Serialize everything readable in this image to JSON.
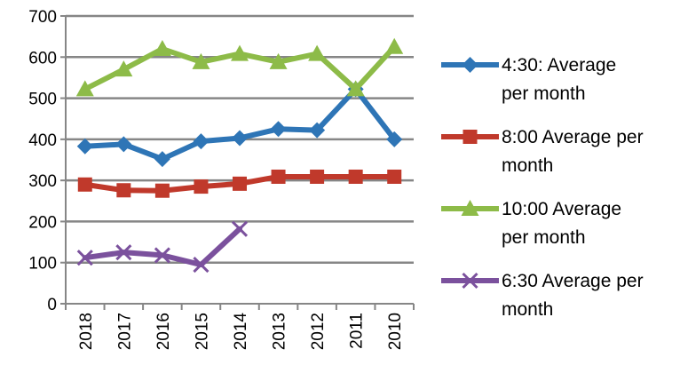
{
  "chart_data": {
    "type": "line",
    "categories": [
      "2018",
      "2017",
      "2016",
      "2015",
      "2014",
      "2013",
      "2012",
      "2011",
      "2010"
    ],
    "series": [
      {
        "name": "4:30: Average per month",
        "legend_lines": [
          "4:30: Average",
          "per month"
        ],
        "color": "#2e75b6",
        "marker": "diamond",
        "values": [
          383,
          388,
          352,
          395,
          403,
          425,
          422,
          522,
          400
        ]
      },
      {
        "name": "8:00 Average per month",
        "legend_lines": [
          "8:00 Average per",
          "month"
        ],
        "color": "#c0392b",
        "marker": "square",
        "values": [
          290,
          276,
          275,
          285,
          292,
          309,
          309,
          309,
          309
        ]
      },
      {
        "name": "10:00 Average per month",
        "legend_lines": [
          "10:00 Average",
          "per month"
        ],
        "color": "#8dbb48",
        "marker": "triangle",
        "values": [
          522,
          570,
          620,
          588,
          608,
          588,
          608,
          522,
          625
        ]
      },
      {
        "name": "6:30 Average per month",
        "legend_lines": [
          "6:30 Average per",
          "month"
        ],
        "color": "#7b519d",
        "marker": "x",
        "values": [
          112,
          125,
          118,
          95,
          182,
          null,
          null,
          null,
          null
        ]
      }
    ],
    "yticks": [
      "0",
      "100",
      "200",
      "300",
      "400",
      "500",
      "600",
      "700"
    ],
    "ylim": [
      0,
      700
    ],
    "grid": true,
    "legend_position": "right"
  }
}
